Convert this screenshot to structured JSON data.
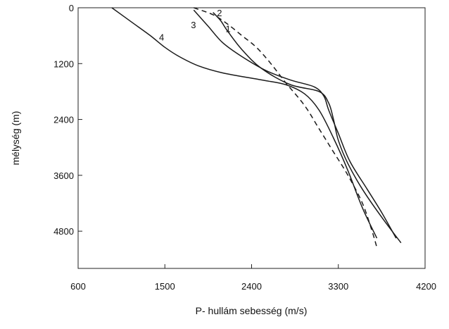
{
  "chart_data": {
    "type": "line",
    "xlabel": "P- hullám sebesség (m/s)",
    "ylabel": "mélység (m)",
    "xlim": [
      600,
      4200
    ],
    "ylim": [
      0,
      5600
    ],
    "y_inverted": true,
    "x_ticks": [
      600,
      1500,
      2400,
      3300,
      4200
    ],
    "y_ticks": [
      0,
      1200,
      2400,
      3600,
      4800
    ],
    "grid": false,
    "legend": "none",
    "series": [
      {
        "name": "1",
        "dash": true,
        "label_at": [
          2130,
          520
        ],
        "points": [
          [
            1800,
            0
          ],
          [
            2000,
            150
          ],
          [
            2150,
            350
          ],
          [
            2300,
            600
          ],
          [
            2450,
            850
          ],
          [
            2600,
            1200
          ],
          [
            2750,
            1600
          ],
          [
            2950,
            2100
          ],
          [
            3100,
            2600
          ],
          [
            3250,
            3100
          ],
          [
            3400,
            3600
          ],
          [
            3550,
            4200
          ],
          [
            3650,
            4800
          ],
          [
            3700,
            5150
          ]
        ]
      },
      {
        "name": "2",
        "dash": false,
        "label_at": [
          2040,
          180
        ],
        "points": [
          [
            2000,
            100
          ],
          [
            2080,
            280
          ],
          [
            2150,
            500
          ],
          [
            2300,
            900
          ],
          [
            2500,
            1300
          ],
          [
            2800,
            1650
          ],
          [
            3100,
            1800
          ],
          [
            3200,
            2050
          ],
          [
            3250,
            2400
          ],
          [
            3300,
            2850
          ],
          [
            3400,
            3350
          ],
          [
            3550,
            3900
          ],
          [
            3750,
            4500
          ],
          [
            3950,
            5050
          ]
        ]
      },
      {
        "name": "3",
        "dash": false,
        "label_at": [
          1770,
          440
        ],
        "points": [
          [
            1800,
            50
          ],
          [
            1950,
            400
          ],
          [
            2100,
            750
          ],
          [
            2300,
            1050
          ],
          [
            2550,
            1350
          ],
          [
            2800,
            1550
          ],
          [
            3050,
            1700
          ],
          [
            3150,
            1900
          ],
          [
            3200,
            2200
          ],
          [
            3300,
            2700
          ],
          [
            3420,
            3300
          ],
          [
            3600,
            3900
          ],
          [
            3750,
            4400
          ],
          [
            3900,
            4950
          ]
        ]
      },
      {
        "name": "4",
        "dash": false,
        "label_at": [
          1440,
          700
        ],
        "points": [
          [
            950,
            0
          ],
          [
            1150,
            300
          ],
          [
            1350,
            600
          ],
          [
            1500,
            850
          ],
          [
            1650,
            1050
          ],
          [
            1850,
            1250
          ],
          [
            2100,
            1400
          ],
          [
            2500,
            1550
          ],
          [
            2750,
            1650
          ],
          [
            2950,
            1850
          ],
          [
            3100,
            2200
          ],
          [
            3250,
            2800
          ],
          [
            3400,
            3500
          ],
          [
            3550,
            4300
          ],
          [
            3700,
            4950
          ]
        ]
      }
    ]
  }
}
